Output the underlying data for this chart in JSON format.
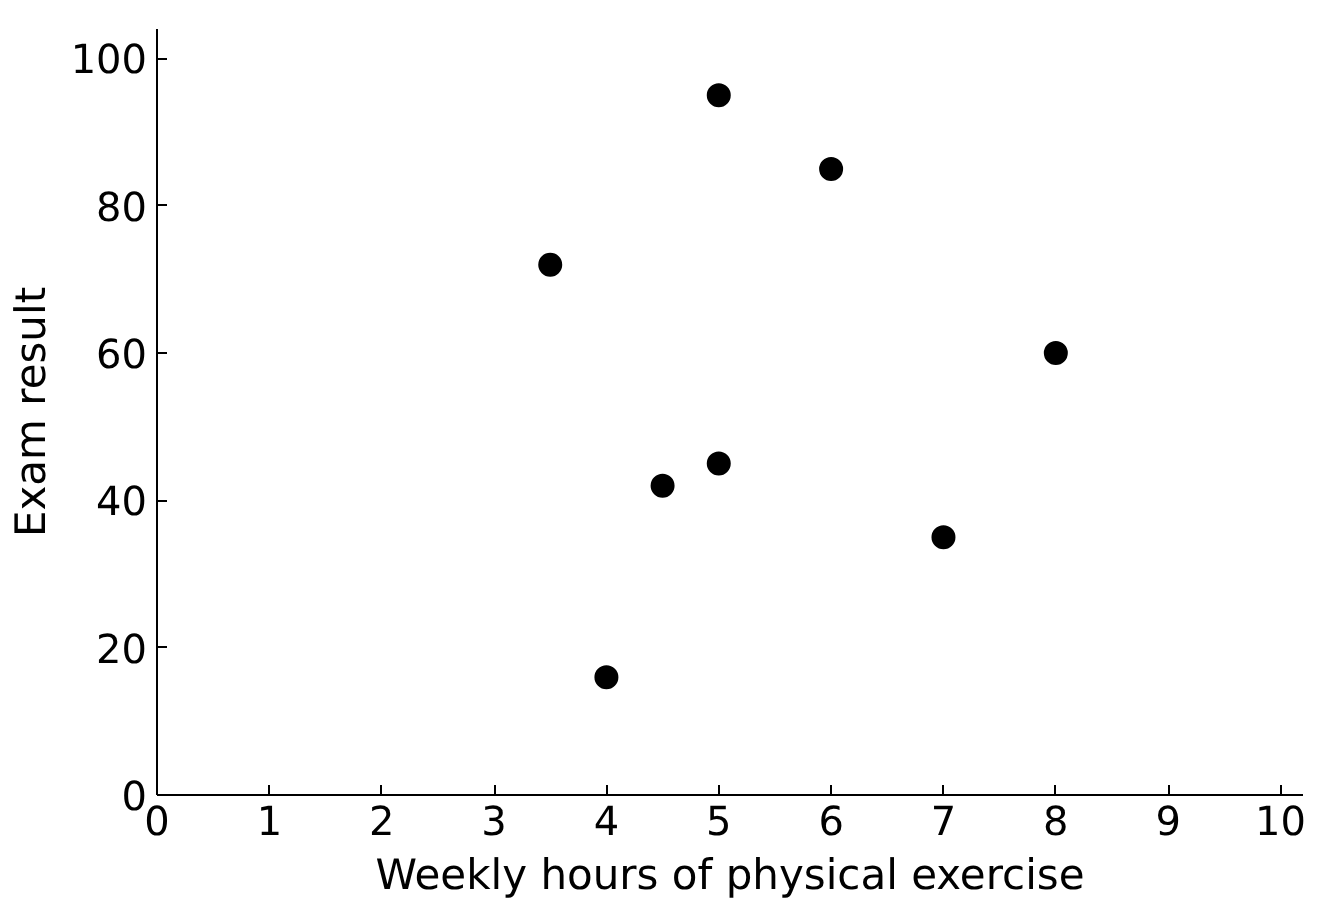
{
  "chart_data": {
    "type": "scatter",
    "xlabel": "Weekly hours of physical exercise",
    "ylabel": "Exam result",
    "x": [
      3.5,
      4,
      4.5,
      5,
      5,
      6,
      7,
      8
    ],
    "values": [
      72,
      16,
      42,
      45,
      95,
      85,
      35,
      60
    ],
    "color": "#000000",
    "marker": "circle",
    "xlim": [
      0,
      10.2
    ],
    "ylim": [
      0,
      104
    ],
    "xticks": [
      0,
      1,
      2,
      3,
      4,
      5,
      6,
      7,
      8,
      9,
      10
    ],
    "yticks": [
      0,
      20,
      40,
      60,
      80,
      100
    ],
    "grid": false
  }
}
